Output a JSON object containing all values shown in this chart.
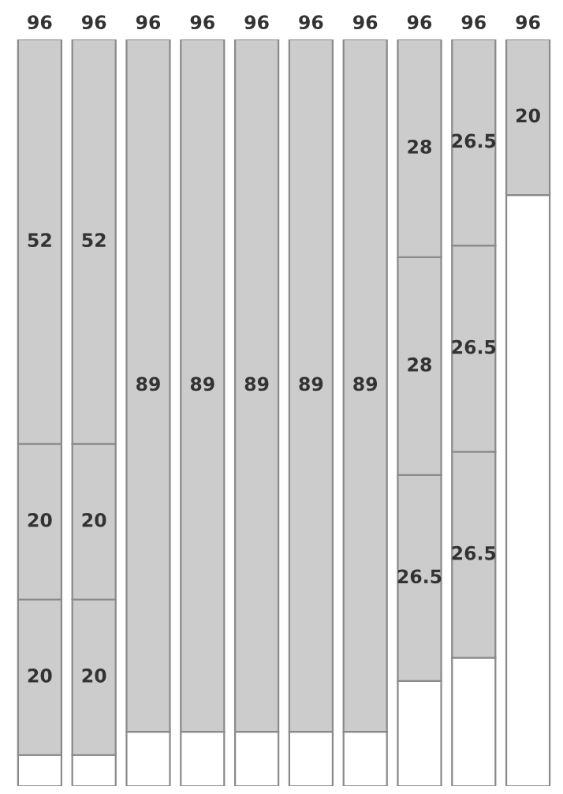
{
  "chart_data": {
    "type": "bar",
    "stacked": true,
    "categories": [
      null,
      null,
      null,
      null,
      null,
      null,
      null,
      null,
      null,
      null
    ],
    "ylim": [
      0,
      96
    ],
    "tick_labels": false,
    "series": [
      {
        "color": "#ffffff",
        "values": [
          4,
          4,
          7,
          7,
          7,
          7,
          7,
          13.5,
          16.5,
          76
        ],
        "value_labels": [
          null,
          null,
          null,
          null,
          null,
          null,
          null,
          null,
          null,
          null
        ]
      },
      {
        "color": "#cccccc",
        "values": [
          20,
          20,
          null,
          null,
          null,
          null,
          null,
          26.5,
          26.5,
          null
        ],
        "value_labels": [
          "20",
          "20",
          null,
          null,
          null,
          null,
          null,
          "26.5",
          "26.5",
          null
        ]
      },
      {
        "color": "#cccccc",
        "values": [
          20,
          20,
          null,
          null,
          null,
          null,
          null,
          28,
          26.5,
          null
        ],
        "value_labels": [
          "20",
          "20",
          null,
          null,
          null,
          null,
          null,
          "28",
          "26.5",
          null
        ]
      },
      {
        "color": "#cccccc",
        "values": [
          52,
          52,
          89,
          89,
          89,
          89,
          89,
          28,
          26.5,
          20
        ],
        "value_labels": [
          "52",
          "52",
          "89",
          "89",
          "89",
          "89",
          "89",
          "28",
          "26.5",
          "20"
        ]
      }
    ],
    "totals": [
      "96",
      "96",
      "96",
      "96",
      "96",
      "96",
      "96",
      "96",
      "96",
      "96"
    ]
  }
}
